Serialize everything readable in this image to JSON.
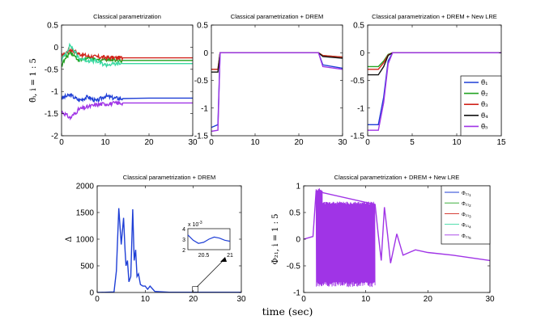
{
  "figure": {
    "xlabel": "time (sec)"
  },
  "colors": {
    "theta1": "#1f3fd6",
    "theta2": "#22a322",
    "theta3": "#d0241b",
    "theta4": "#111111",
    "theta5": "#a034e6",
    "theta2b": "#3bd9a2"
  },
  "chart_data": [
    {
      "id": "p1",
      "type": "line",
      "title": "Classical parametrization",
      "ylabel": "θ̃ᵢ, i = 1 : 5",
      "xlim": [
        0,
        30
      ],
      "ylim": [
        -2,
        0.5
      ],
      "xticks": [
        "0",
        "10",
        "20",
        "30"
      ],
      "yticks": [
        "-2",
        "-1.5",
        "-1",
        "-0.5",
        "0",
        "0.5"
      ],
      "grid": false,
      "series": [
        {
          "color": "theta1",
          "style": "noisy",
          "x": [
            0,
            2,
            4,
            6,
            8,
            10,
            12,
            14,
            20,
            30
          ],
          "y": [
            -1.15,
            -1.08,
            -1.2,
            -1.12,
            -1.22,
            -1.1,
            -1.15,
            -1.16,
            -1.15,
            -1.15
          ]
        },
        {
          "color": "theta2",
          "style": "noisy",
          "x": [
            0,
            2,
            4,
            6,
            8,
            10,
            12,
            14,
            20,
            30
          ],
          "y": [
            -0.4,
            -0.1,
            -0.3,
            -0.25,
            -0.3,
            -0.27,
            -0.28,
            -0.3,
            -0.3,
            -0.3
          ]
        },
        {
          "color": "theta3",
          "style": "noisy",
          "x": [
            0,
            2,
            4,
            6,
            8,
            10,
            12,
            14,
            20,
            30
          ],
          "y": [
            -0.2,
            -0.05,
            -0.15,
            -0.2,
            -0.22,
            -0.23,
            -0.24,
            -0.24,
            -0.24,
            -0.24
          ]
        },
        {
          "color": "theta2b",
          "style": "noisy",
          "x": [
            0,
            2,
            4,
            6,
            8,
            10,
            12,
            14,
            20,
            30
          ],
          "y": [
            -0.3,
            0.05,
            -0.25,
            -0.3,
            -0.32,
            -0.4,
            -0.38,
            -0.37,
            -0.37,
            -0.37
          ]
        },
        {
          "color": "theta5",
          "style": "noisy",
          "x": [
            0,
            2,
            4,
            6,
            8,
            10,
            12,
            14,
            20,
            30
          ],
          "y": [
            -1.45,
            -1.6,
            -1.4,
            -1.35,
            -1.3,
            -1.28,
            -1.27,
            -1.26,
            -1.26,
            -1.26
          ]
        }
      ]
    },
    {
      "id": "p2",
      "type": "line",
      "title": "Classical parametrization + DREM",
      "xlim": [
        0,
        30
      ],
      "ylim": [
        -1.5,
        0.5
      ],
      "xticks": [
        "0",
        "10",
        "20",
        "30"
      ],
      "yticks": [
        "-1.5",
        "-1",
        "-0.5",
        "0",
        "0.5"
      ],
      "grid": false,
      "series": [
        {
          "color": "theta1",
          "x": [
            0,
            1.5,
            2,
            3,
            24.5,
            25.5,
            30
          ],
          "y": [
            -1.35,
            -1.3,
            0,
            0,
            0,
            -0.22,
            -0.28
          ]
        },
        {
          "color": "theta2",
          "x": [
            0,
            1.5,
            2,
            3,
            24.5,
            25.5,
            30
          ],
          "y": [
            -0.3,
            -0.3,
            0,
            0,
            0,
            -0.05,
            -0.08
          ]
        },
        {
          "color": "theta3",
          "x": [
            0,
            1.5,
            2,
            3,
            24.5,
            25.5,
            30
          ],
          "y": [
            -0.3,
            -0.3,
            0,
            0,
            0,
            -0.05,
            -0.08
          ]
        },
        {
          "color": "theta4",
          "x": [
            0,
            1.5,
            2,
            3,
            24.5,
            25.5,
            30
          ],
          "y": [
            -0.35,
            -0.35,
            0,
            0,
            0,
            -0.07,
            -0.1
          ]
        },
        {
          "color": "theta5",
          "x": [
            0,
            1.5,
            2,
            3,
            24.5,
            25.5,
            30
          ],
          "y": [
            -1.42,
            -1.4,
            0,
            0,
            0,
            -0.25,
            -0.3
          ]
        }
      ]
    },
    {
      "id": "p3",
      "type": "line",
      "title": "Classical parametrization + DREM + New LRE",
      "xlim": [
        0,
        15
      ],
      "ylim": [
        -1.5,
        0.5
      ],
      "xticks": [
        "0",
        "5",
        "10",
        "15"
      ],
      "yticks": [
        "-1.5",
        "-1",
        "-0.5",
        "0",
        "0.5"
      ],
      "grid": false,
      "legend": {
        "position": "bottom-right",
        "entries": [
          {
            "label": "θ̃₁",
            "color": "theta1"
          },
          {
            "label": "θ̃₂",
            "color": "theta2"
          },
          {
            "label": "θ̃₃",
            "color": "theta3"
          },
          {
            "label": "θ̃₄",
            "color": "theta4"
          },
          {
            "label": "θ̃₅",
            "color": "theta5"
          }
        ]
      },
      "series": [
        {
          "color": "theta1",
          "x": [
            0,
            1.2,
            1.8,
            2.3,
            2.8,
            15
          ],
          "y": [
            -1.3,
            -1.3,
            -0.8,
            -0.15,
            0,
            0
          ]
        },
        {
          "color": "theta2",
          "x": [
            0,
            1.2,
            1.8,
            2.3,
            2.8,
            15
          ],
          "y": [
            -0.25,
            -0.25,
            -0.15,
            -0.03,
            0,
            0
          ]
        },
        {
          "color": "theta3",
          "x": [
            0,
            1.2,
            1.8,
            2.3,
            2.8,
            15
          ],
          "y": [
            -0.3,
            -0.3,
            -0.18,
            -0.04,
            0,
            0
          ]
        },
        {
          "color": "theta4",
          "x": [
            0,
            1.2,
            1.8,
            2.3,
            2.8,
            15
          ],
          "y": [
            -0.4,
            -0.4,
            -0.25,
            -0.05,
            0,
            0
          ]
        },
        {
          "color": "theta5",
          "x": [
            0,
            1.2,
            1.8,
            2.3,
            2.8,
            15
          ],
          "y": [
            -1.4,
            -1.4,
            -0.9,
            -0.2,
            0,
            0
          ]
        }
      ]
    },
    {
      "id": "p4",
      "type": "line",
      "title": "Classical parametrization + DREM",
      "ylabel": "Δ",
      "xlim": [
        0,
        30
      ],
      "ylim": [
        0,
        2000
      ],
      "xticks": [
        "0",
        "10",
        "20",
        "30"
      ],
      "yticks": [
        "0",
        "500",
        "1000",
        "1500",
        "2000"
      ],
      "grid": false,
      "series": [
        {
          "color": "theta1",
          "x": [
            0,
            3.5,
            4,
            4.5,
            5,
            5.5,
            5.8,
            6,
            6.3,
            6.6,
            7,
            7.4,
            7.7,
            8,
            8.3,
            8.6,
            9,
            9.5,
            10,
            10.5,
            11,
            12,
            15,
            30
          ],
          "y": [
            0,
            10,
            400,
            1580,
            900,
            1400,
            800,
            500,
            600,
            200,
            300,
            1560,
            600,
            800,
            300,
            350,
            150,
            120,
            120,
            60,
            120,
            20,
            5,
            5
          ]
        }
      ],
      "annotation": {
        "marker_x": 20.5,
        "marker_y": 5
      },
      "inset": {
        "exponent": "x 10",
        "exponent_power": "-3",
        "xlim": [
          20.2,
          21
        ],
        "ylim": [
          2,
          4
        ],
        "xticks": [
          "20.5",
          "21"
        ],
        "yticks": [
          "2",
          "3",
          "4"
        ],
        "x": [
          20.2,
          20.3,
          20.4,
          20.5,
          20.6,
          20.7,
          20.8,
          20.9,
          21
        ],
        "y": [
          3.4,
          2.9,
          2.6,
          2.7,
          3.0,
          3.2,
          3.1,
          2.9,
          2.8
        ]
      }
    },
    {
      "id": "p5",
      "type": "line",
      "title": "Classical parametrization + DREM + New LRE",
      "ylabel": "Φ₂₁, i = 1 : 5",
      "xlim": [
        0,
        30
      ],
      "ylim": [
        -1,
        1
      ],
      "xticks": [
        "0",
        "10",
        "20",
        "30"
      ],
      "yticks": [
        "-1",
        "-0.5",
        "0",
        "0.5",
        "1"
      ],
      "grid": false,
      "legend": {
        "position": "top-right",
        "entries": [
          {
            "label": "Φ₂₁",
            "sub": "1",
            "color": "theta1"
          },
          {
            "label": "Φ₂₁",
            "sub": "2",
            "color": "theta2"
          },
          {
            "label": "Φ₂₁",
            "sub": "3",
            "color": "theta3"
          },
          {
            "label": "Φ₂₁",
            "sub": "4",
            "color": "theta2b"
          },
          {
            "label": "Φ₂₁",
            "sub": "5",
            "color": "theta5"
          }
        ]
      },
      "series": [
        {
          "color": "theta5",
          "style": "oscillation",
          "x": [
            0,
            1.5,
            2,
            11.5,
            12,
            12.5,
            13,
            13.5,
            14,
            15,
            16,
            17,
            18,
            20,
            24,
            30
          ],
          "y": [
            0,
            0.05,
            0.9,
            0.65,
            0.1,
            -0.4,
            0.6,
            0.1,
            -0.45,
            0.1,
            -0.3,
            -0.25,
            -0.2,
            -0.25,
            -0.3,
            -0.4
          ]
        }
      ]
    }
  ]
}
